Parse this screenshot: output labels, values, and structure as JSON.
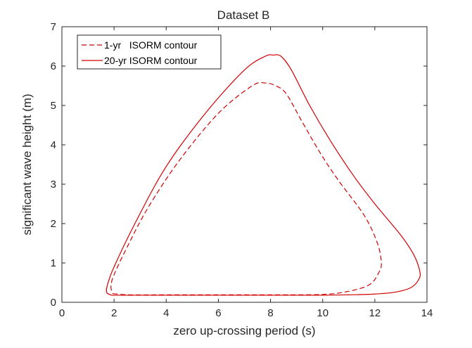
{
  "chart_data": {
    "type": "line",
    "title": "Dataset B",
    "xlabel": "zero up-crossing period (s)",
    "ylabel": "significant wave height (m)",
    "xlim": [
      0,
      14
    ],
    "ylim": [
      0,
      7
    ],
    "xticks": [
      0,
      2,
      4,
      6,
      8,
      10,
      12,
      14
    ],
    "yticks": [
      0,
      1,
      2,
      3,
      4,
      5,
      6,
      7
    ],
    "grid": false,
    "legend_position": "top-left",
    "series": [
      {
        "name": "1-yr   ISORM contour",
        "style": "dashed",
        "color": "#d00000",
        "points": [
          [
            1.95,
            0.22
          ],
          [
            2.6,
            0.19
          ],
          [
            4.0,
            0.19
          ],
          [
            6.0,
            0.19
          ],
          [
            8.0,
            0.19
          ],
          [
            10.0,
            0.2
          ],
          [
            11.0,
            0.28
          ],
          [
            11.8,
            0.45
          ],
          [
            12.15,
            0.75
          ],
          [
            12.25,
            1.0
          ],
          [
            12.1,
            1.5
          ],
          [
            11.6,
            2.2
          ],
          [
            10.6,
            3.1
          ],
          [
            9.9,
            3.8
          ],
          [
            9.2,
            4.6
          ],
          [
            8.6,
            5.3
          ],
          [
            8.2,
            5.5
          ],
          [
            7.8,
            5.57
          ],
          [
            7.3,
            5.5
          ],
          [
            6.0,
            4.8
          ],
          [
            4.5,
            3.6
          ],
          [
            3.3,
            2.4
          ],
          [
            2.5,
            1.4
          ],
          [
            2.0,
            0.7
          ],
          [
            1.88,
            0.4
          ],
          [
            1.95,
            0.22
          ]
        ]
      },
      {
        "name": "20-yr ISORM contour",
        "style": "solid",
        "color": "#d00000",
        "points": [
          [
            1.9,
            0.18
          ],
          [
            2.5,
            0.18
          ],
          [
            4.0,
            0.18
          ],
          [
            6.0,
            0.18
          ],
          [
            8.0,
            0.18
          ],
          [
            10.0,
            0.18
          ],
          [
            11.0,
            0.19
          ],
          [
            12.0,
            0.21
          ],
          [
            12.8,
            0.26
          ],
          [
            13.4,
            0.38
          ],
          [
            13.7,
            0.6
          ],
          [
            13.72,
            0.8
          ],
          [
            13.5,
            1.2
          ],
          [
            13.0,
            1.7
          ],
          [
            12.0,
            2.5
          ],
          [
            11.2,
            3.2
          ],
          [
            10.3,
            4.1
          ],
          [
            9.5,
            5.0
          ],
          [
            8.8,
            5.9
          ],
          [
            8.4,
            6.25
          ],
          [
            8.1,
            6.28
          ],
          [
            7.8,
            6.25
          ],
          [
            7.0,
            5.9
          ],
          [
            5.5,
            4.8
          ],
          [
            4.0,
            3.45
          ],
          [
            2.8,
            2.0
          ],
          [
            2.0,
            0.9
          ],
          [
            1.75,
            0.45
          ],
          [
            1.72,
            0.25
          ],
          [
            1.9,
            0.18
          ]
        ]
      }
    ]
  },
  "colors": {
    "series_red": "#d00000",
    "axis": "#262626",
    "legend_border": "#262626"
  }
}
